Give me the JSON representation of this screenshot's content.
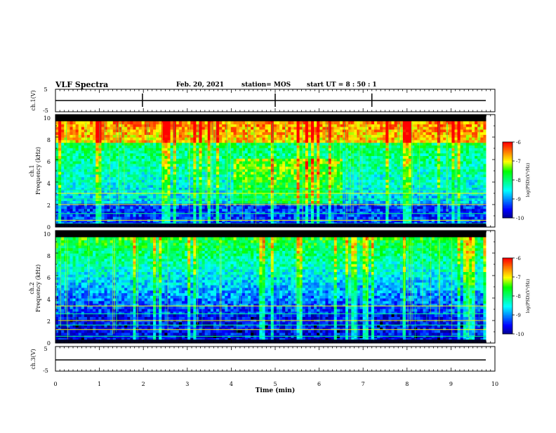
{
  "header": {
    "title": "VLF Spectra",
    "date": "Feb. 20, 2021",
    "station": "station= MOS",
    "start": "start  UT =   8 : 50 : 1"
  },
  "colors": {
    "spectrogram_map": [
      "#000000",
      "#000080",
      "#0000ff",
      "#0080ff",
      "#00ffff",
      "#00ff80",
      "#00ff00",
      "#ffff00",
      "#ff8000",
      "#ff0000",
      "#ffffff"
    ]
  },
  "chart_data": [
    {
      "type": "line",
      "panel": "ch.1 waveform",
      "ylabel": "ch.1(V)",
      "ylim": [
        -5,
        5
      ],
      "yticks": [
        "5",
        "-5"
      ],
      "xlim": [
        0,
        10
      ],
      "series": [
        {
          "values_description_free": true,
          "x": [
            0,
            9.8
          ],
          "y": [
            0,
            0
          ]
        }
      ],
      "spikes_at_min": [
        1.98,
        5.0,
        7.2
      ]
    },
    {
      "type": "heatmap",
      "panel": "ch.1 spectrogram",
      "ylabel": "ch.1\nFrequency (kHz)",
      "ylim": [
        0,
        10
      ],
      "yticks": [
        "0",
        "2",
        "4",
        "6",
        "8",
        "10"
      ],
      "xlim": [
        0,
        9.8
      ],
      "colorbar": {
        "label": "log(PSD)(V²/Hz)",
        "range": [
          -10,
          -6
        ],
        "ticks": [
          "-6",
          "-7",
          "-8",
          "-9",
          "-10"
        ]
      },
      "bands_kHz": [
        0.3,
        0.6,
        1.2,
        2.0,
        2.5,
        3.0,
        3.3
      ]
    },
    {
      "type": "heatmap",
      "panel": "ch.2 spectrogram",
      "ylabel": "ch.2\nFrequency (kHz)",
      "ylim": [
        0,
        10
      ],
      "yticks": [
        "0",
        "2",
        "4",
        "6",
        "8",
        "10"
      ],
      "xlim": [
        0,
        9.8
      ],
      "colorbar": {
        "label": "log(PSD)(V²/Hz)",
        "range": [
          -10,
          -6
        ],
        "ticks": [
          "-6",
          "-7",
          "-8",
          "-9",
          "-10"
        ]
      },
      "bands_kHz": [
        0.6,
        1.2,
        1.6,
        2.0,
        2.6,
        3.3
      ]
    },
    {
      "type": "line",
      "panel": "ch.3 waveform",
      "ylabel": "ch.3(V)",
      "ylim": [
        -5,
        5
      ],
      "yticks": [
        "5",
        "-5"
      ],
      "xlim": [
        0,
        10
      ],
      "series": [
        {
          "x": [
            0,
            9.8
          ],
          "y": [
            0,
            0
          ]
        }
      ]
    }
  ],
  "xaxis": {
    "label": "Time  (min)",
    "ticks": [
      "0",
      "1",
      "2",
      "3",
      "4",
      "5",
      "6",
      "7",
      "8",
      "9",
      "10"
    ],
    "range": [
      0,
      10
    ]
  }
}
